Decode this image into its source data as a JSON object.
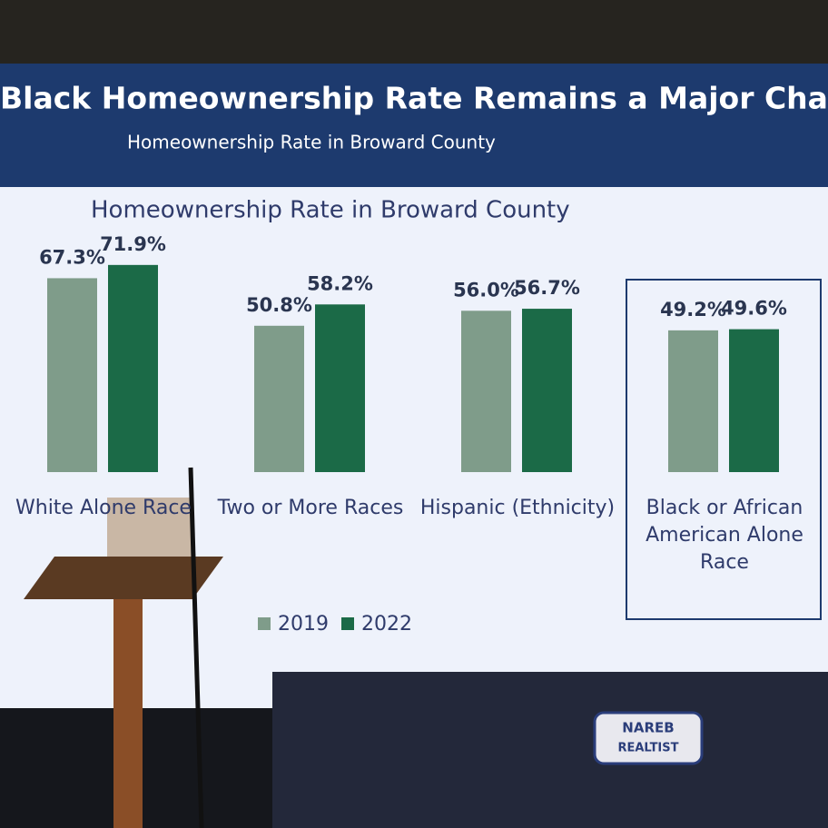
{
  "chart_data": {
    "type": "bar",
    "header": "Black Homeownership Rate Remains a Major Challenge",
    "subtitle": "Homeownership Rate in Broward County",
    "title": "Homeownership Rate in Broward County",
    "categories": [
      "White Alone Race",
      "Two or More Races",
      "Hispanic (Ethnicity)",
      "Black or African American Alone Race"
    ],
    "series": [
      {
        "name": "2019",
        "color": "#7f9c8a",
        "values": [
          67.3,
          50.8,
          56.0,
          49.2
        ],
        "value_labels": [
          "67.3%",
          "50.8%",
          "56.0%",
          "49.2%"
        ]
      },
      {
        "name": "2022",
        "color": "#1b6a47",
        "values": [
          71.9,
          58.2,
          56.7,
          49.6
        ],
        "value_labels": [
          "71.9%",
          "58.2%",
          "56.7%",
          "49.6%"
        ]
      }
    ],
    "ylim": [
      0,
      75
    ]
  },
  "logo": [
    "NAREB",
    "REALTIST"
  ]
}
